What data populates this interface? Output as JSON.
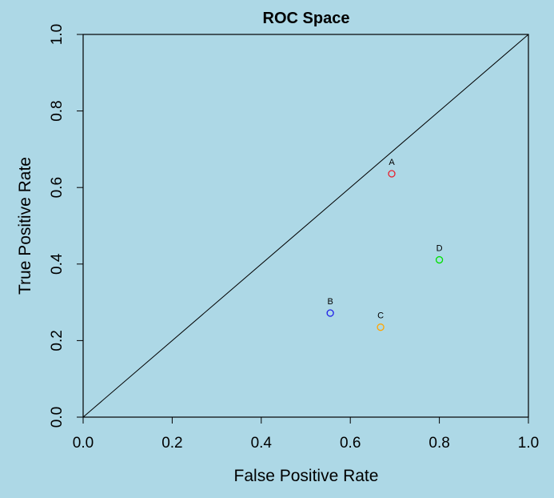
{
  "chart_data": {
    "type": "scatter",
    "title": "ROC Space",
    "xlabel": "False Positive Rate",
    "ylabel": "True Positive Rate",
    "xlim": [
      0,
      1
    ],
    "ylim": [
      0,
      1
    ],
    "xticks": [
      0.0,
      0.2,
      0.4,
      0.6,
      0.8,
      1.0
    ],
    "xtick_labels": [
      "0.0",
      "0.2",
      "0.4",
      "0.6",
      "0.8",
      "1.0"
    ],
    "yticks": [
      0.0,
      0.2,
      0.4,
      0.6,
      0.8,
      1.0
    ],
    "ytick_labels": [
      "0.0",
      "0.2",
      "0.4",
      "0.6",
      "0.8",
      "1.0"
    ],
    "diagonal": {
      "x": [
        0,
        1
      ],
      "y": [
        0,
        1
      ]
    },
    "points": [
      {
        "label": "A",
        "x": 0.693,
        "y": 0.636,
        "color": "#e8202e"
      },
      {
        "label": "B",
        "x": 0.555,
        "y": 0.272,
        "color": "#2020e8"
      },
      {
        "label": "C",
        "x": 0.668,
        "y": 0.235,
        "color": "#ffa500"
      },
      {
        "label": "D",
        "x": 0.8,
        "y": 0.411,
        "color": "#00e000"
      }
    ],
    "grid": false
  }
}
